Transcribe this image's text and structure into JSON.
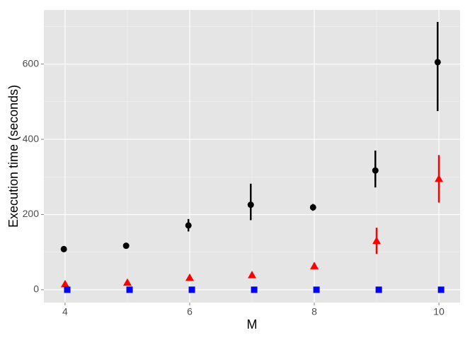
{
  "chart_data": {
    "type": "scatter",
    "x_label": "M",
    "y_label": "Execution time (seconds)",
    "x": [
      4,
      5,
      6,
      7,
      8,
      9,
      10
    ],
    "series": [
      {
        "color": "#000000",
        "shape": "circle",
        "values": [
          108,
          117,
          171,
          226,
          219,
          317,
          605
        ],
        "lower": [
          null,
          null,
          155,
          185,
          210,
          272,
          475
        ],
        "upper": [
          null,
          null,
          188,
          282,
          228,
          370,
          712
        ]
      },
      {
        "color": "#ff0000",
        "shape": "triangle",
        "values": [
          15,
          19,
          32,
          39,
          63,
          130,
          295
        ],
        "lower": [
          null,
          null,
          null,
          null,
          55,
          95,
          232
        ],
        "upper": [
          null,
          null,
          null,
          null,
          72,
          165,
          358
        ]
      },
      {
        "color": "#0000ff",
        "shape": "square",
        "values": [
          0,
          0,
          0,
          0,
          0,
          0,
          0
        ],
        "lower": [
          null,
          null,
          null,
          null,
          null,
          null,
          null
        ],
        "upper": [
          null,
          null,
          null,
          null,
          null,
          null,
          null
        ]
      }
    ],
    "xlim": [
      3.66,
      10.34
    ],
    "ylim": [
      -34,
      744
    ],
    "xticks": [
      4,
      6,
      8,
      10
    ],
    "yticks": [
      0,
      200,
      400,
      600
    ],
    "grid": true
  }
}
